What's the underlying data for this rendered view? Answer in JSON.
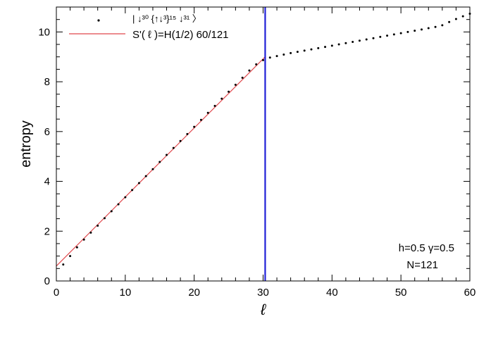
{
  "chart_data": {
    "type": "scatter",
    "xlabel": "ℓ",
    "ylabel": "entropy",
    "xlim": [
      0,
      60
    ],
    "ylim": [
      0,
      11
    ],
    "xticks": [
      0,
      10,
      20,
      30,
      40,
      50,
      60
    ],
    "yticks": [
      0,
      2,
      4,
      6,
      8,
      10
    ],
    "grid": false,
    "legend_position": "top-left",
    "legend": {
      "points_label": "| ↓³⁰ {↑↓³}¹⁵ ↓³¹ 〉",
      "line_label": "S'( ℓ )=H(1/2) 60/121"
    },
    "annotations": [
      "h=0.5 γ=0.5",
      "N=121"
    ],
    "vertical_line": {
      "x": 30.3,
      "color": "#1f1fd6"
    },
    "series": [
      {
        "type": "scatter",
        "color": "#000000",
        "x": [
          1,
          2,
          3,
          4,
          5,
          6,
          7,
          8,
          9,
          10,
          11,
          12,
          13,
          14,
          15,
          16,
          17,
          18,
          19,
          20,
          21,
          22,
          23,
          24,
          25,
          26,
          27,
          28,
          29,
          30,
          31,
          32,
          33,
          34,
          35,
          36,
          37,
          38,
          39,
          40,
          41,
          42,
          43,
          44,
          45,
          46,
          47,
          48,
          49,
          50,
          51,
          52,
          53,
          54,
          55,
          56,
          57,
          58,
          59,
          60
        ],
        "values": [
          0.66,
          1.0,
          1.35,
          1.66,
          1.94,
          2.22,
          2.52,
          2.8,
          3.08,
          3.36,
          3.65,
          3.93,
          4.21,
          4.49,
          4.78,
          5.06,
          5.34,
          5.62,
          5.9,
          6.19,
          6.47,
          6.75,
          7.03,
          7.32,
          7.6,
          7.88,
          8.16,
          8.45,
          8.7,
          8.87,
          8.97,
          9.03,
          9.09,
          9.15,
          9.2,
          9.25,
          9.3,
          9.35,
          9.4,
          9.45,
          9.5,
          9.55,
          9.6,
          9.65,
          9.7,
          9.75,
          9.8,
          9.85,
          9.9,
          9.95,
          10.0,
          10.05,
          10.1,
          10.15,
          10.2,
          10.27,
          10.4,
          10.52,
          10.63,
          10.73
        ]
      },
      {
        "type": "line",
        "color": "#e0474c",
        "x": [
          0,
          30.3
        ],
        "values": [
          0.6,
          9.0
        ]
      }
    ]
  }
}
